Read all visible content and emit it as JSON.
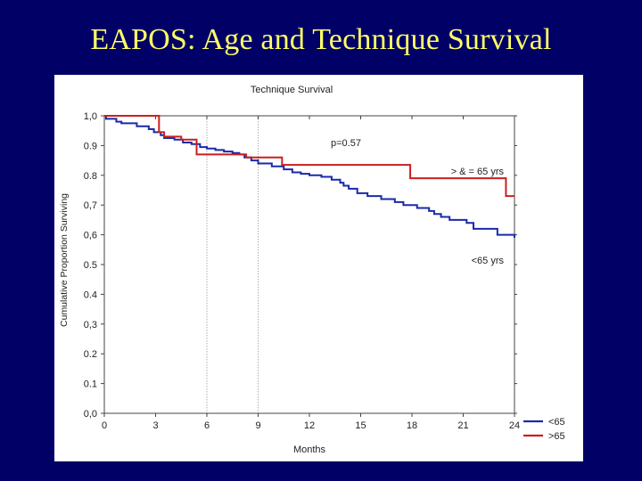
{
  "slide": {
    "title": "EAPOS: Age and Technique Survival"
  },
  "chart_data": {
    "type": "line",
    "step": true,
    "title": "Technique Survival",
    "xlabel": "Months",
    "ylabel": "Cumulative Proportion Surviving",
    "xlim": [
      0,
      24
    ],
    "ylim": [
      0,
      1
    ],
    "x_ticks": [
      0,
      3,
      6,
      9,
      12,
      15,
      18,
      21,
      24
    ],
    "x_tick_labels": [
      "0",
      "3",
      "6",
      "9",
      "12",
      "15",
      "18",
      "21",
      "24"
    ],
    "y_ticks": [
      0,
      0.1,
      0.2,
      0.3,
      0.4,
      0.5,
      0.6,
      0.7,
      0.8,
      0.9,
      1.0
    ],
    "y_tick_labels": [
      "0,0",
      "0.1",
      "0.2",
      "0,3",
      "0.4",
      "0.5",
      "0,6",
      "0,7",
      "0.8",
      "0.9",
      "1,0"
    ],
    "reference_lines_x": [
      6,
      9
    ],
    "annotations": [
      {
        "text": "p=0.57",
        "x": 13.5,
        "y": 0.915
      },
      {
        "text": "> & = 65 yrs",
        "x": 23.5,
        "y": 0.82
      },
      {
        "text": "<65 yrs",
        "x": 23.5,
        "y": 0.52
      }
    ],
    "legend": {
      "position": "bottom-right",
      "entries": [
        "<65",
        ">65"
      ]
    },
    "series": [
      {
        "name": "<65",
        "color": "#1a2aa8",
        "x": [
          0,
          0.1,
          0.7,
          1.0,
          1.9,
          2.6,
          2.9,
          3.3,
          3.5,
          4.1,
          4.6,
          5.1,
          5.6,
          6.0,
          6.5,
          7.0,
          7.5,
          7.9,
          8.2,
          8.6,
          9.0,
          9.8,
          10.5,
          11.0,
          11.5,
          12.0,
          12.7,
          13.3,
          13.8,
          14.0,
          14.3,
          14.8,
          15.4,
          16.2,
          17.0,
          17.5,
          18.3,
          19.0,
          19.3,
          19.7,
          20.2,
          21.2,
          21.6,
          23.0,
          24.0
        ],
        "y": [
          1.0,
          0.99,
          0.98,
          0.975,
          0.965,
          0.955,
          0.945,
          0.935,
          0.925,
          0.92,
          0.91,
          0.905,
          0.895,
          0.89,
          0.885,
          0.88,
          0.875,
          0.87,
          0.86,
          0.85,
          0.84,
          0.83,
          0.82,
          0.81,
          0.805,
          0.8,
          0.795,
          0.785,
          0.775,
          0.765,
          0.755,
          0.74,
          0.73,
          0.72,
          0.71,
          0.7,
          0.69,
          0.68,
          0.67,
          0.66,
          0.65,
          0.64,
          0.62,
          0.6,
          0.59
        ]
      },
      {
        "name": ">65",
        "color": "#cc1f1f",
        "x": [
          0,
          3.2,
          3.5,
          4.5,
          5.4,
          8.3,
          10.4,
          17.9,
          23.5,
          24.0
        ],
        "y": [
          1.0,
          0.945,
          0.93,
          0.92,
          0.87,
          0.86,
          0.835,
          0.79,
          0.73,
          0.73
        ]
      }
    ]
  }
}
